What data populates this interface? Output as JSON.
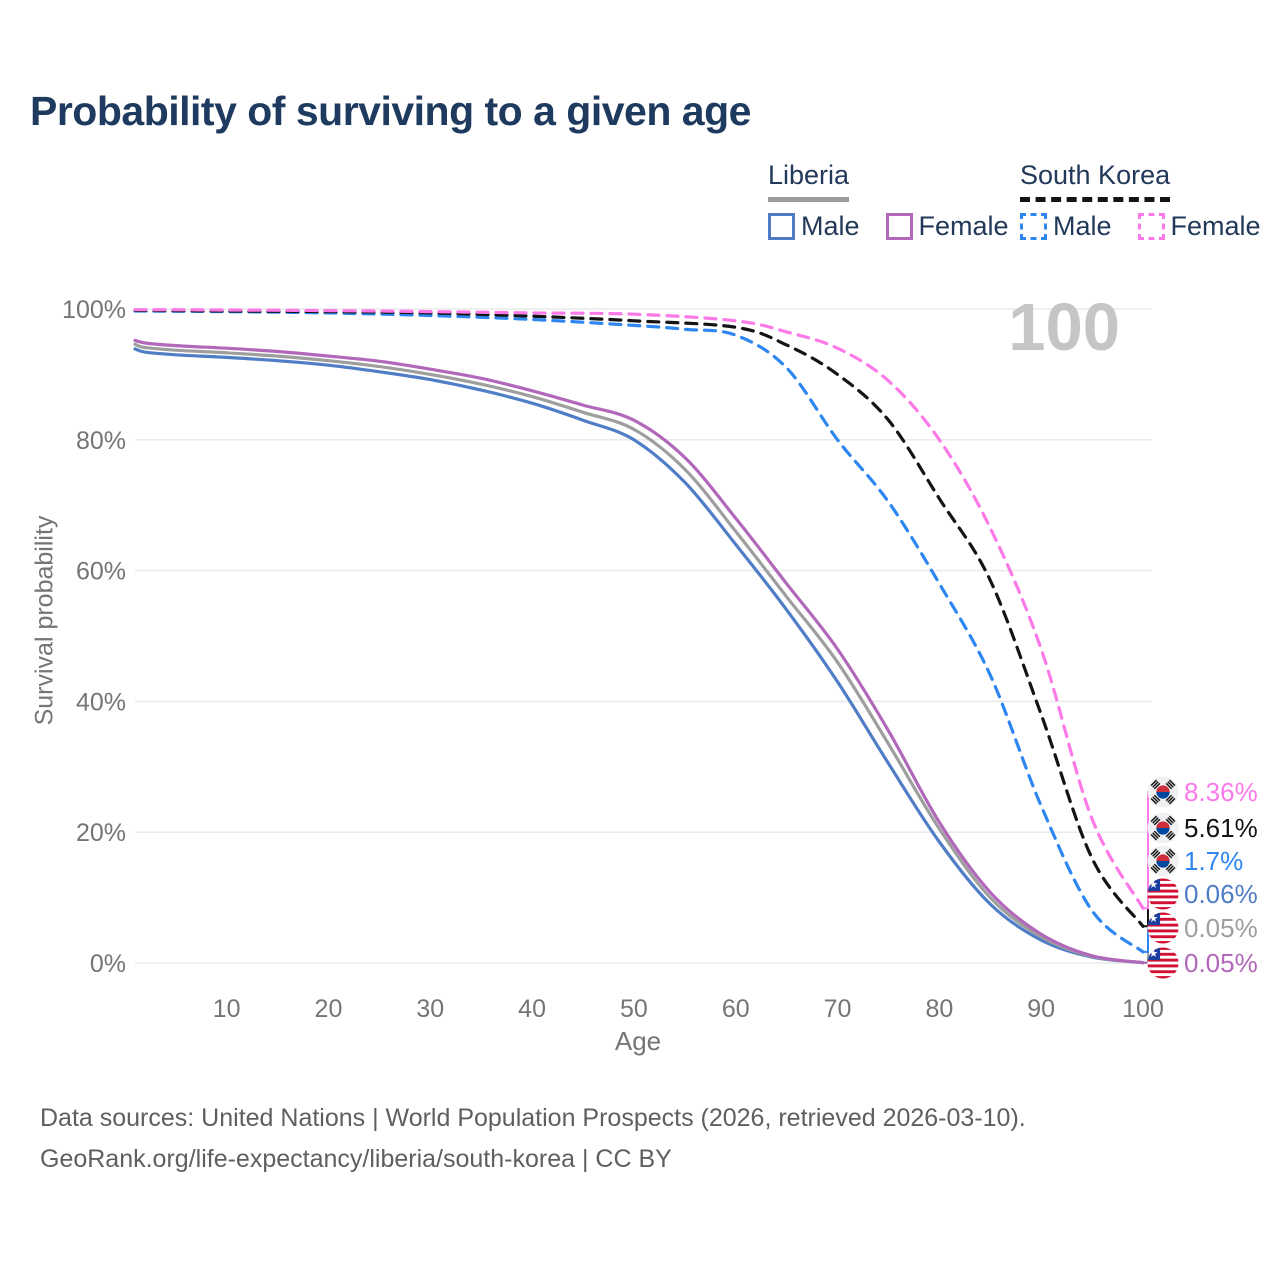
{
  "title": "Probability of surviving to a given age",
  "watermark_age": "100",
  "legend": {
    "groups": [
      {
        "label": "Liberia",
        "line_style": "solid",
        "underline_color": "#9b9b9b",
        "items": [
          {
            "label": "Male",
            "color": "#4f7dc6"
          },
          {
            "label": "Female",
            "color": "#b168ba"
          }
        ]
      },
      {
        "label": "South Korea",
        "line_style": "dashed",
        "underline_color": "#141414",
        "items": [
          {
            "label": "Male",
            "color": "#2e86f1"
          },
          {
            "label": "Female",
            "color": "#fb7ae8"
          }
        ]
      }
    ]
  },
  "chart_data": {
    "type": "line",
    "title": "Probability of surviving to a given age",
    "xlabel": "Age",
    "ylabel": "Survival probability",
    "xlim": [
      1,
      100
    ],
    "ylim": [
      0,
      100
    ],
    "x_ticks": [
      10,
      20,
      30,
      40,
      50,
      60,
      70,
      80,
      90,
      100
    ],
    "y_ticks": [
      0,
      20,
      40,
      60,
      80,
      100
    ],
    "y_tick_suffix": "%",
    "grid": true,
    "legend_position": "top-right",
    "series": [
      {
        "name": "Liberia Male",
        "country": "Liberia",
        "sex": "Male",
        "color": "#4f7dc6",
        "dash": false,
        "end_value": "0.06%",
        "end_label_index": 3,
        "points": [
          [
            1,
            93.9
          ],
          [
            2,
            93.4
          ],
          [
            5,
            93.0
          ],
          [
            10,
            92.6
          ],
          [
            15,
            92.1
          ],
          [
            20,
            91.4
          ],
          [
            25,
            90.4
          ],
          [
            30,
            89.2
          ],
          [
            35,
            87.6
          ],
          [
            40,
            85.6
          ],
          [
            45,
            83.0
          ],
          [
            50,
            80.0
          ],
          [
            55,
            73.5
          ],
          [
            60,
            64.0
          ],
          [
            65,
            54.0
          ],
          [
            70,
            43.0
          ],
          [
            75,
            30.5
          ],
          [
            80,
            18.5
          ],
          [
            85,
            9.0
          ],
          [
            90,
            3.5
          ],
          [
            95,
            0.9
          ],
          [
            100,
            0.06
          ]
        ]
      },
      {
        "name": "Liberia Both sexes",
        "country": "Liberia",
        "sex": "Both",
        "color": "#9e9e9e",
        "dash": false,
        "end_value": "0.05%",
        "end_label_index": 4,
        "points": [
          [
            1,
            94.6
          ],
          [
            2,
            94.1
          ],
          [
            5,
            93.7
          ],
          [
            10,
            93.3
          ],
          [
            15,
            92.8
          ],
          [
            20,
            92.1
          ],
          [
            25,
            91.2
          ],
          [
            30,
            90.0
          ],
          [
            35,
            88.5
          ],
          [
            40,
            86.6
          ],
          [
            45,
            84.2
          ],
          [
            50,
            81.6
          ],
          [
            55,
            75.5
          ],
          [
            60,
            66.0
          ],
          [
            65,
            56.0
          ],
          [
            70,
            46.0
          ],
          [
            75,
            33.5
          ],
          [
            80,
            20.5
          ],
          [
            85,
            10.0
          ],
          [
            90,
            4.0
          ],
          [
            95,
            1.0
          ],
          [
            100,
            0.05
          ]
        ]
      },
      {
        "name": "Liberia Female",
        "country": "Liberia",
        "sex": "Female",
        "color": "#b168ba",
        "dash": false,
        "end_value": "0.05%",
        "end_label_index": 5,
        "points": [
          [
            1,
            95.2
          ],
          [
            2,
            94.8
          ],
          [
            5,
            94.4
          ],
          [
            10,
            94.0
          ],
          [
            15,
            93.5
          ],
          [
            20,
            92.8
          ],
          [
            25,
            92.0
          ],
          [
            30,
            90.8
          ],
          [
            35,
            89.4
          ],
          [
            40,
            87.5
          ],
          [
            45,
            85.3
          ],
          [
            50,
            83.0
          ],
          [
            55,
            77.3
          ],
          [
            60,
            68.0
          ],
          [
            65,
            58.0
          ],
          [
            70,
            48.0
          ],
          [
            75,
            35.5
          ],
          [
            80,
            21.5
          ],
          [
            85,
            10.8
          ],
          [
            90,
            4.4
          ],
          [
            95,
            1.1
          ],
          [
            100,
            0.05
          ]
        ]
      },
      {
        "name": "South Korea Male",
        "country": "South Korea",
        "sex": "Male",
        "color": "#2e86f1",
        "dash": true,
        "end_value": "1.7%",
        "end_label_index": 2,
        "points": [
          [
            1,
            99.7
          ],
          [
            10,
            99.6
          ],
          [
            20,
            99.4
          ],
          [
            30,
            99.0
          ],
          [
            40,
            98.4
          ],
          [
            50,
            97.5
          ],
          [
            55,
            96.9
          ],
          [
            60,
            96.0
          ],
          [
            65,
            91.0
          ],
          [
            70,
            80.0
          ],
          [
            75,
            70.5
          ],
          [
            80,
            58.0
          ],
          [
            85,
            44.0
          ],
          [
            90,
            24.0
          ],
          [
            95,
            8.0
          ],
          [
            100,
            1.7
          ]
        ]
      },
      {
        "name": "South Korea Both sexes",
        "country": "South Korea",
        "sex": "Both",
        "color": "#141414",
        "dash": true,
        "end_value": "5.61%",
        "end_label_index": 1,
        "points": [
          [
            1,
            99.8
          ],
          [
            10,
            99.7
          ],
          [
            20,
            99.6
          ],
          [
            30,
            99.4
          ],
          [
            40,
            98.9
          ],
          [
            50,
            98.2
          ],
          [
            60,
            97.2
          ],
          [
            65,
            94.5
          ],
          [
            70,
            90.0
          ],
          [
            75,
            83.0
          ],
          [
            80,
            71.0
          ],
          [
            85,
            58.5
          ],
          [
            90,
            38.0
          ],
          [
            95,
            16.0
          ],
          [
            100,
            5.61
          ]
        ]
      },
      {
        "name": "South Korea Female",
        "country": "South Korea",
        "sex": "Female",
        "color": "#fb7ae8",
        "dash": true,
        "end_value": "8.36%",
        "end_label_index": 0,
        "points": [
          [
            1,
            99.9
          ],
          [
            10,
            99.85
          ],
          [
            20,
            99.75
          ],
          [
            30,
            99.6
          ],
          [
            40,
            99.4
          ],
          [
            50,
            99.2
          ],
          [
            60,
            98.2
          ],
          [
            65,
            96.5
          ],
          [
            70,
            94.0
          ],
          [
            75,
            89.0
          ],
          [
            80,
            80.0
          ],
          [
            85,
            66.5
          ],
          [
            90,
            48.0
          ],
          [
            95,
            22.0
          ],
          [
            100,
            8.36
          ]
        ]
      }
    ]
  },
  "end_labels": [
    {
      "value": "8.36%",
      "color": "#fb7ae8",
      "flag": "south-korea"
    },
    {
      "value": "5.61%",
      "color": "#141414",
      "flag": "south-korea"
    },
    {
      "value": "1.7%",
      "color": "#2e86f1",
      "flag": "south-korea"
    },
    {
      "value": "0.06%",
      "color": "#4f7dc6",
      "flag": "liberia"
    },
    {
      "value": "0.05%",
      "color": "#9e9e9e",
      "flag": "liberia"
    },
    {
      "value": "0.05%",
      "color": "#b168ba",
      "flag": "liberia"
    }
  ],
  "footer": {
    "line1": "Data sources: United Nations | World Population Prospects (2026, retrieved 2026-03-10).",
    "line2": "GeoRank.org/life-expectancy/liberia/south-korea | CC BY"
  }
}
